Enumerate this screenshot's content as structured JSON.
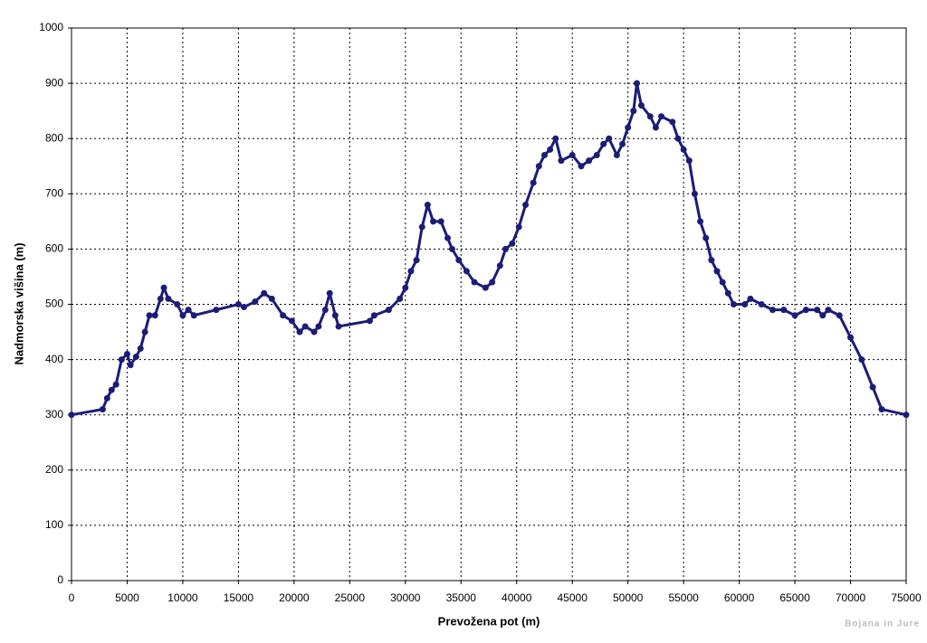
{
  "chart_data": {
    "type": "line",
    "xlabel": "Prevožena pot (m)",
    "ylabel": "Nadmorska višina (m)",
    "annotation": "Bojana in Jure",
    "color": "#1c1c78",
    "markers": true,
    "grid": true,
    "xlim": [
      0,
      75000
    ],
    "ylim": [
      0,
      1000
    ],
    "xticks": [
      0,
      5000,
      10000,
      15000,
      20000,
      25000,
      30000,
      35000,
      40000,
      45000,
      50000,
      55000,
      60000,
      65000,
      70000,
      75000
    ],
    "yticks": [
      0,
      100,
      200,
      300,
      400,
      500,
      600,
      700,
      800,
      900,
      1000
    ],
    "x": [
      0,
      2800,
      3200,
      3600,
      4000,
      4500,
      5000,
      5300,
      5800,
      6200,
      6600,
      7000,
      7500,
      8000,
      8300,
      8700,
      9500,
      10000,
      10500,
      11000,
      13000,
      15000,
      15500,
      16500,
      17300,
      18000,
      19000,
      19800,
      20500,
      21000,
      21800,
      22200,
      22800,
      23200,
      23700,
      24000,
      26800,
      27200,
      28500,
      29500,
      30000,
      30500,
      31000,
      31500,
      32000,
      32500,
      33200,
      33800,
      34200,
      34800,
      35500,
      36200,
      37200,
      37800,
      38500,
      39000,
      39600,
      40200,
      40800,
      41500,
      42000,
      42500,
      43000,
      43500,
      44000,
      45000,
      45800,
      46500,
      47200,
      47800,
      48300,
      49000,
      49500,
      50000,
      50500,
      50800,
      51200,
      52000,
      52500,
      53000,
      54000,
      54500,
      55000,
      55500,
      56000,
      56500,
      57000,
      57500,
      58000,
      58500,
      59000,
      59500,
      60500,
      61000,
      62000,
      63000,
      64000,
      65000,
      66000,
      67000,
      67500,
      68000,
      69000,
      70000,
      71000,
      72000,
      72800,
      75000
    ],
    "values": [
      300,
      310,
      330,
      345,
      355,
      400,
      410,
      390,
      405,
      420,
      450,
      480,
      480,
      510,
      530,
      510,
      500,
      480,
      490,
      480,
      490,
      500,
      495,
      505,
      520,
      510,
      480,
      470,
      450,
      460,
      450,
      460,
      490,
      520,
      480,
      460,
      470,
      480,
      490,
      510,
      530,
      560,
      580,
      640,
      680,
      650,
      650,
      620,
      600,
      580,
      560,
      540,
      530,
      540,
      570,
      600,
      610,
      640,
      680,
      720,
      750,
      770,
      780,
      800,
      760,
      770,
      750,
      760,
      770,
      790,
      800,
      770,
      790,
      820,
      850,
      900,
      860,
      840,
      820,
      840,
      830,
      800,
      780,
      760,
      700,
      650,
      620,
      580,
      560,
      540,
      520,
      500,
      500,
      510,
      500,
      490,
      490,
      480,
      490,
      490,
      480,
      490,
      480,
      440,
      400,
      350,
      310,
      300
    ]
  }
}
